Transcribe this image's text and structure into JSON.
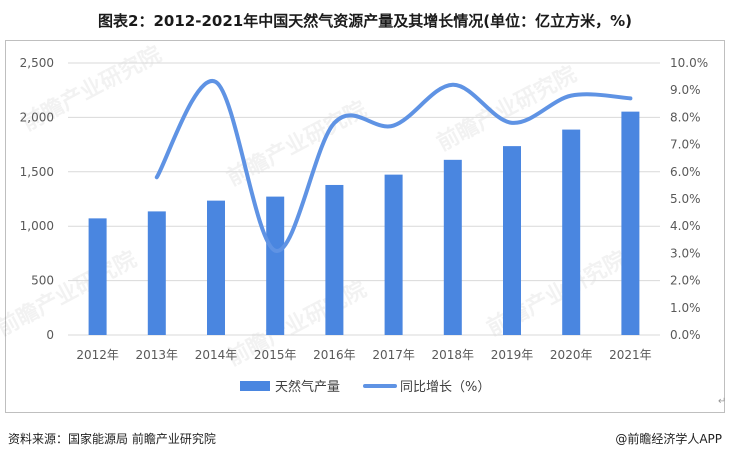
{
  "title": "图表2：2012-2021年中国天然气资源产量及其增长情况(单位：亿立方米，%)",
  "footer": {
    "source": "资料来源：国家能源局 前瞻产业研究院",
    "brand": "@前瞻经济学人APP"
  },
  "watermark": "前瞻产业研究院",
  "return_mark": "↵",
  "chart_data": {
    "type": "bar",
    "categories": [
      "2012年",
      "2013年",
      "2014年",
      "2015年",
      "2016年",
      "2017年",
      "2018年",
      "2019年",
      "2020年",
      "2021年"
    ],
    "series": [
      {
        "name": "天然气产量",
        "type": "bar",
        "axis": "left",
        "color": "#4a86e0",
        "values": [
          1072,
          1136,
          1235,
          1272,
          1379,
          1474,
          1610,
          1736,
          1888,
          2053
        ]
      },
      {
        "name": "同比增长（%）",
        "type": "line",
        "axis": "right",
        "color": "#5f93e4",
        "values": [
          null,
          5.8,
          9.3,
          3.1,
          7.8,
          7.7,
          9.2,
          7.8,
          8.8,
          8.7
        ]
      }
    ],
    "left_axis": {
      "min": 0,
      "max": 2500,
      "step": 500,
      "ticks": [
        "0",
        "500",
        "1,000",
        "1,500",
        "2,000",
        "2,500"
      ]
    },
    "right_axis": {
      "min": 0,
      "max": 10,
      "step": 1,
      "ticks": [
        "0.0%",
        "1.0%",
        "2.0%",
        "3.0%",
        "4.0%",
        "5.0%",
        "6.0%",
        "7.0%",
        "8.0%",
        "9.0%",
        "10.0%"
      ]
    },
    "grid": true,
    "legend_position": "bottom-center"
  }
}
